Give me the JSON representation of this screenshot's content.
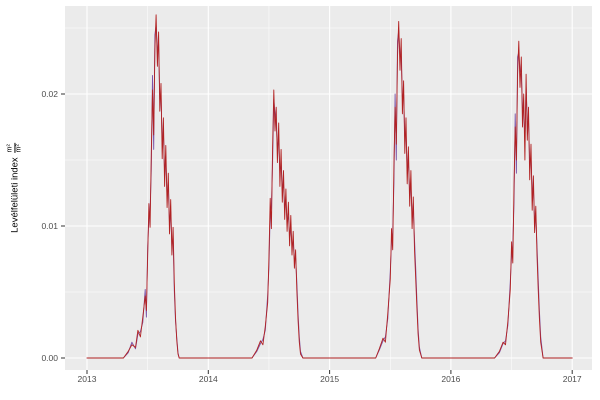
{
  "figure": {
    "y_axis_title": "Levélfelületi index",
    "y_axis_unit_numerator": "m²",
    "y_axis_unit_denominator": "m²"
  },
  "chart_data": {
    "type": "line",
    "title": "",
    "xlabel": "",
    "ylabel": "Levélfelületi index (m²/m²)",
    "legend": "none",
    "grid": true,
    "panel_background": "#EBEBEB",
    "grid_color": "#FFFFFF",
    "xlim": [
      2012.8,
      2017.2
    ],
    "ylim": [
      0,
      0.0267
    ],
    "x_tick_labels": [
      "2013",
      "2014",
      "2015",
      "2016",
      "2017"
    ],
    "y_tick_labels": [
      "0.00",
      "0.01",
      "0.02"
    ],
    "x_tick_values": [
      2013,
      2014,
      2015,
      2016,
      2017
    ],
    "y_tick_values": [
      0,
      0.01,
      0.02
    ],
    "y_minor_ticks": [
      0.005,
      0.015,
      0.025
    ],
    "x_minor_ticks": [
      2013.5,
      2014.5,
      2015.5,
      2016.5
    ],
    "x": [
      2013.0,
      2013.3,
      2013.34,
      2013.37,
      2013.4,
      2013.42,
      2013.44,
      2013.46,
      2013.48,
      2013.49,
      2013.5,
      2013.51,
      2013.52,
      2013.53,
      2013.54,
      2013.55,
      2013.56,
      2013.57,
      2013.58,
      2013.59,
      2013.6,
      2013.61,
      2013.62,
      2013.63,
      2013.64,
      2013.65,
      2013.66,
      2013.67,
      2013.68,
      2013.69,
      2013.7,
      2013.71,
      2013.72,
      2013.73,
      2013.74,
      2013.75,
      2013.76,
      2014.36,
      2014.4,
      2014.43,
      2014.45,
      2014.47,
      2014.49,
      2014.5,
      2014.51,
      2014.52,
      2014.53,
      2014.54,
      2014.55,
      2014.56,
      2014.57,
      2014.58,
      2014.59,
      2014.6,
      2014.61,
      2014.62,
      2014.63,
      2014.64,
      2014.65,
      2014.66,
      2014.67,
      2014.68,
      2014.69,
      2014.7,
      2014.71,
      2014.72,
      2014.73,
      2014.74,
      2014.75,
      2014.76,
      2014.78,
      2015.38,
      2015.41,
      2015.44,
      2015.46,
      2015.48,
      2015.5,
      2015.51,
      2015.52,
      2015.53,
      2015.54,
      2015.55,
      2015.56,
      2015.57,
      2015.58,
      2015.59,
      2015.6,
      2015.61,
      2015.62,
      2015.63,
      2015.64,
      2015.65,
      2015.66,
      2015.67,
      2015.68,
      2015.69,
      2015.7,
      2015.71,
      2015.72,
      2015.73,
      2015.74,
      2015.76,
      2016.36,
      2016.4,
      2016.43,
      2016.45,
      2016.47,
      2016.49,
      2016.5,
      2016.51,
      2016.52,
      2016.53,
      2016.54,
      2016.55,
      2016.56,
      2016.57,
      2016.58,
      2016.59,
      2016.6,
      2016.61,
      2016.62,
      2016.63,
      2016.64,
      2016.65,
      2016.66,
      2016.67,
      2016.68,
      2016.69,
      2016.7,
      2016.71,
      2016.72,
      2016.73,
      2016.74,
      2016.76,
      2017.0
    ],
    "series": [
      {
        "name": "purple-series",
        "color": "#7A52A8",
        "values": [
          0,
          0,
          0.0004,
          0.0012,
          0.0007,
          0.0018,
          0.002,
          0.0027,
          0.0052,
          0.0031,
          0.0085,
          0.0105,
          0.0112,
          0.0143,
          0.0214,
          0.0158,
          0.0245,
          0.0252,
          0.0232,
          0.0238,
          0.0196,
          0.0199,
          0.0162,
          0.0171,
          0.0141,
          0.015,
          0.0122,
          0.0131,
          0.0102,
          0.0111,
          0.0085,
          0.0091,
          0.0051,
          0.0028,
          0.0015,
          0.0004,
          0,
          0,
          0.0005,
          0.0011,
          0.0014,
          0.0021,
          0.0048,
          0.0068,
          0.011,
          0.0115,
          0.0148,
          0.0196,
          0.0185,
          0.0178,
          0.016,
          0.0165,
          0.0142,
          0.0146,
          0.0128,
          0.0131,
          0.0115,
          0.0118,
          0.0104,
          0.0107,
          0.0094,
          0.0097,
          0.0086,
          0.0088,
          0.0075,
          0.0076,
          0.0058,
          0.0033,
          0.0016,
          0.0005,
          0,
          0,
          0.0006,
          0.0013,
          0.0016,
          0.003,
          0.0066,
          0.0088,
          0.0095,
          0.0132,
          0.02,
          0.015,
          0.024,
          0.0248,
          0.023,
          0.0228,
          0.0198,
          0.02,
          0.0168,
          0.017,
          0.0142,
          0.0148,
          0.0126,
          0.013,
          0.0108,
          0.0112,
          0.009,
          0.0068,
          0.0044,
          0.0022,
          0.0008,
          0,
          0,
          0.0004,
          0.0011,
          0.0013,
          0.0025,
          0.0058,
          0.0078,
          0.0085,
          0.0118,
          0.0185,
          0.014,
          0.0228,
          0.0232,
          0.0218,
          0.0215,
          0.019,
          0.0188,
          0.0165,
          0.0205,
          0.0178,
          0.018,
          0.0148,
          0.0152,
          0.0125,
          0.0128,
          0.0105,
          0.0108,
          0.0085,
          0.006,
          0.0036,
          0.0016,
          0,
          0
        ]
      },
      {
        "name": "red-series",
        "color": "#B22222",
        "values": [
          0,
          0,
          0.0005,
          0.001,
          0.0008,
          0.0021,
          0.0016,
          0.0031,
          0.0047,
          0.0036,
          0.0078,
          0.0117,
          0.0099,
          0.0156,
          0.0203,
          0.0169,
          0.0234,
          0.026,
          0.0221,
          0.0247,
          0.0187,
          0.0208,
          0.0151,
          0.0182,
          0.013,
          0.0161,
          0.0114,
          0.014,
          0.0094,
          0.012,
          0.0078,
          0.0099,
          0.0057,
          0.0031,
          0.0013,
          0.0003,
          0,
          0,
          0.0006,
          0.0013,
          0.001,
          0.0024,
          0.0042,
          0.0075,
          0.0121,
          0.0098,
          0.016,
          0.0203,
          0.0172,
          0.019,
          0.0148,
          0.0178,
          0.013,
          0.0158,
          0.0118,
          0.0142,
          0.0105,
          0.0128,
          0.0096,
          0.0118,
          0.0085,
          0.0108,
          0.0078,
          0.0096,
          0.0068,
          0.0082,
          0.0052,
          0.0028,
          0.0012,
          0.0003,
          0,
          0,
          0.0007,
          0.0015,
          0.0012,
          0.0034,
          0.006,
          0.0098,
          0.0082,
          0.0145,
          0.019,
          0.0162,
          0.0228,
          0.0255,
          0.0218,
          0.0242,
          0.0185,
          0.021,
          0.0155,
          0.0182,
          0.0132,
          0.016,
          0.0115,
          0.0142,
          0.0098,
          0.0122,
          0.0082,
          0.006,
          0.0038,
          0.0018,
          0.0006,
          0,
          0,
          0.0005,
          0.0012,
          0.001,
          0.0028,
          0.0052,
          0.0088,
          0.0072,
          0.013,
          0.0175,
          0.015,
          0.0215,
          0.024,
          0.0205,
          0.0228,
          0.0175,
          0.02,
          0.015,
          0.0215,
          0.0165,
          0.019,
          0.0135,
          0.0162,
          0.0112,
          0.0138,
          0.0095,
          0.0115,
          0.0078,
          0.0052,
          0.003,
          0.0012,
          0,
          0
        ]
      }
    ]
  }
}
